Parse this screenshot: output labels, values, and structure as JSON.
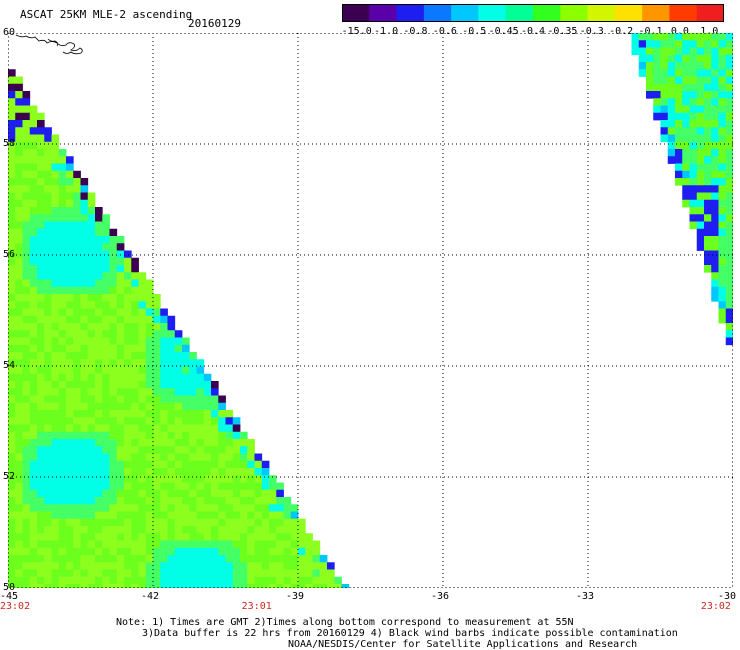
{
  "header": {
    "title": "ASCAT 25KM MLE-2 ascending",
    "date": "20160129"
  },
  "colorbar": {
    "labels": [
      "-15.0",
      "-1.0",
      "-0.8",
      "-0.6",
      "-0.5",
      "-0.45",
      "-0.4",
      "-0.35",
      "-0.3",
      "-0.2",
      "-0.1",
      "0.0",
      "1.0"
    ],
    "colors": [
      "#3c0050",
      "#5a00aa",
      "#1e1ef0",
      "#0a78ff",
      "#00c8ff",
      "#00ffe6",
      "#00ff96",
      "#32ff1e",
      "#8cff00",
      "#d2f500",
      "#ffe100",
      "#ff9600",
      "#ff3c00",
      "#f01e1e"
    ]
  },
  "map": {
    "lon_labels": [
      "-45",
      "-42",
      "-39",
      "-36",
      "-33",
      "-30"
    ],
    "lat_labels": [
      "60",
      "58",
      "56",
      "54",
      "52",
      "50"
    ],
    "lon_values": [
      -45,
      -42,
      -39,
      -36,
      -33,
      -30
    ],
    "lat_values": [
      60,
      58,
      56,
      54,
      52,
      50
    ],
    "times": [
      "23:02",
      "23:01",
      "23:02"
    ],
    "time_lons": [
      -45,
      -40,
      -30.5
    ],
    "swath_colors": {
      "green": "#6cff1e",
      "lime": "#8cff1e",
      "light_green": "#44ff66",
      "cyan": "#00ffe6",
      "sky": "#00c8ff",
      "blue": "#1e1ef0",
      "purple": "#3c0050"
    }
  },
  "footer": {
    "note1": "Note: 1) Times are GMT 2)Times along bottom correspond to measurement at 55N",
    "note2": "3)Data buffer is 22 hrs from 20160129 4) Black wind barbs indicate possible contamination",
    "credit": "NOAA/NESDIS/Center for Satellite Applications and Research"
  }
}
